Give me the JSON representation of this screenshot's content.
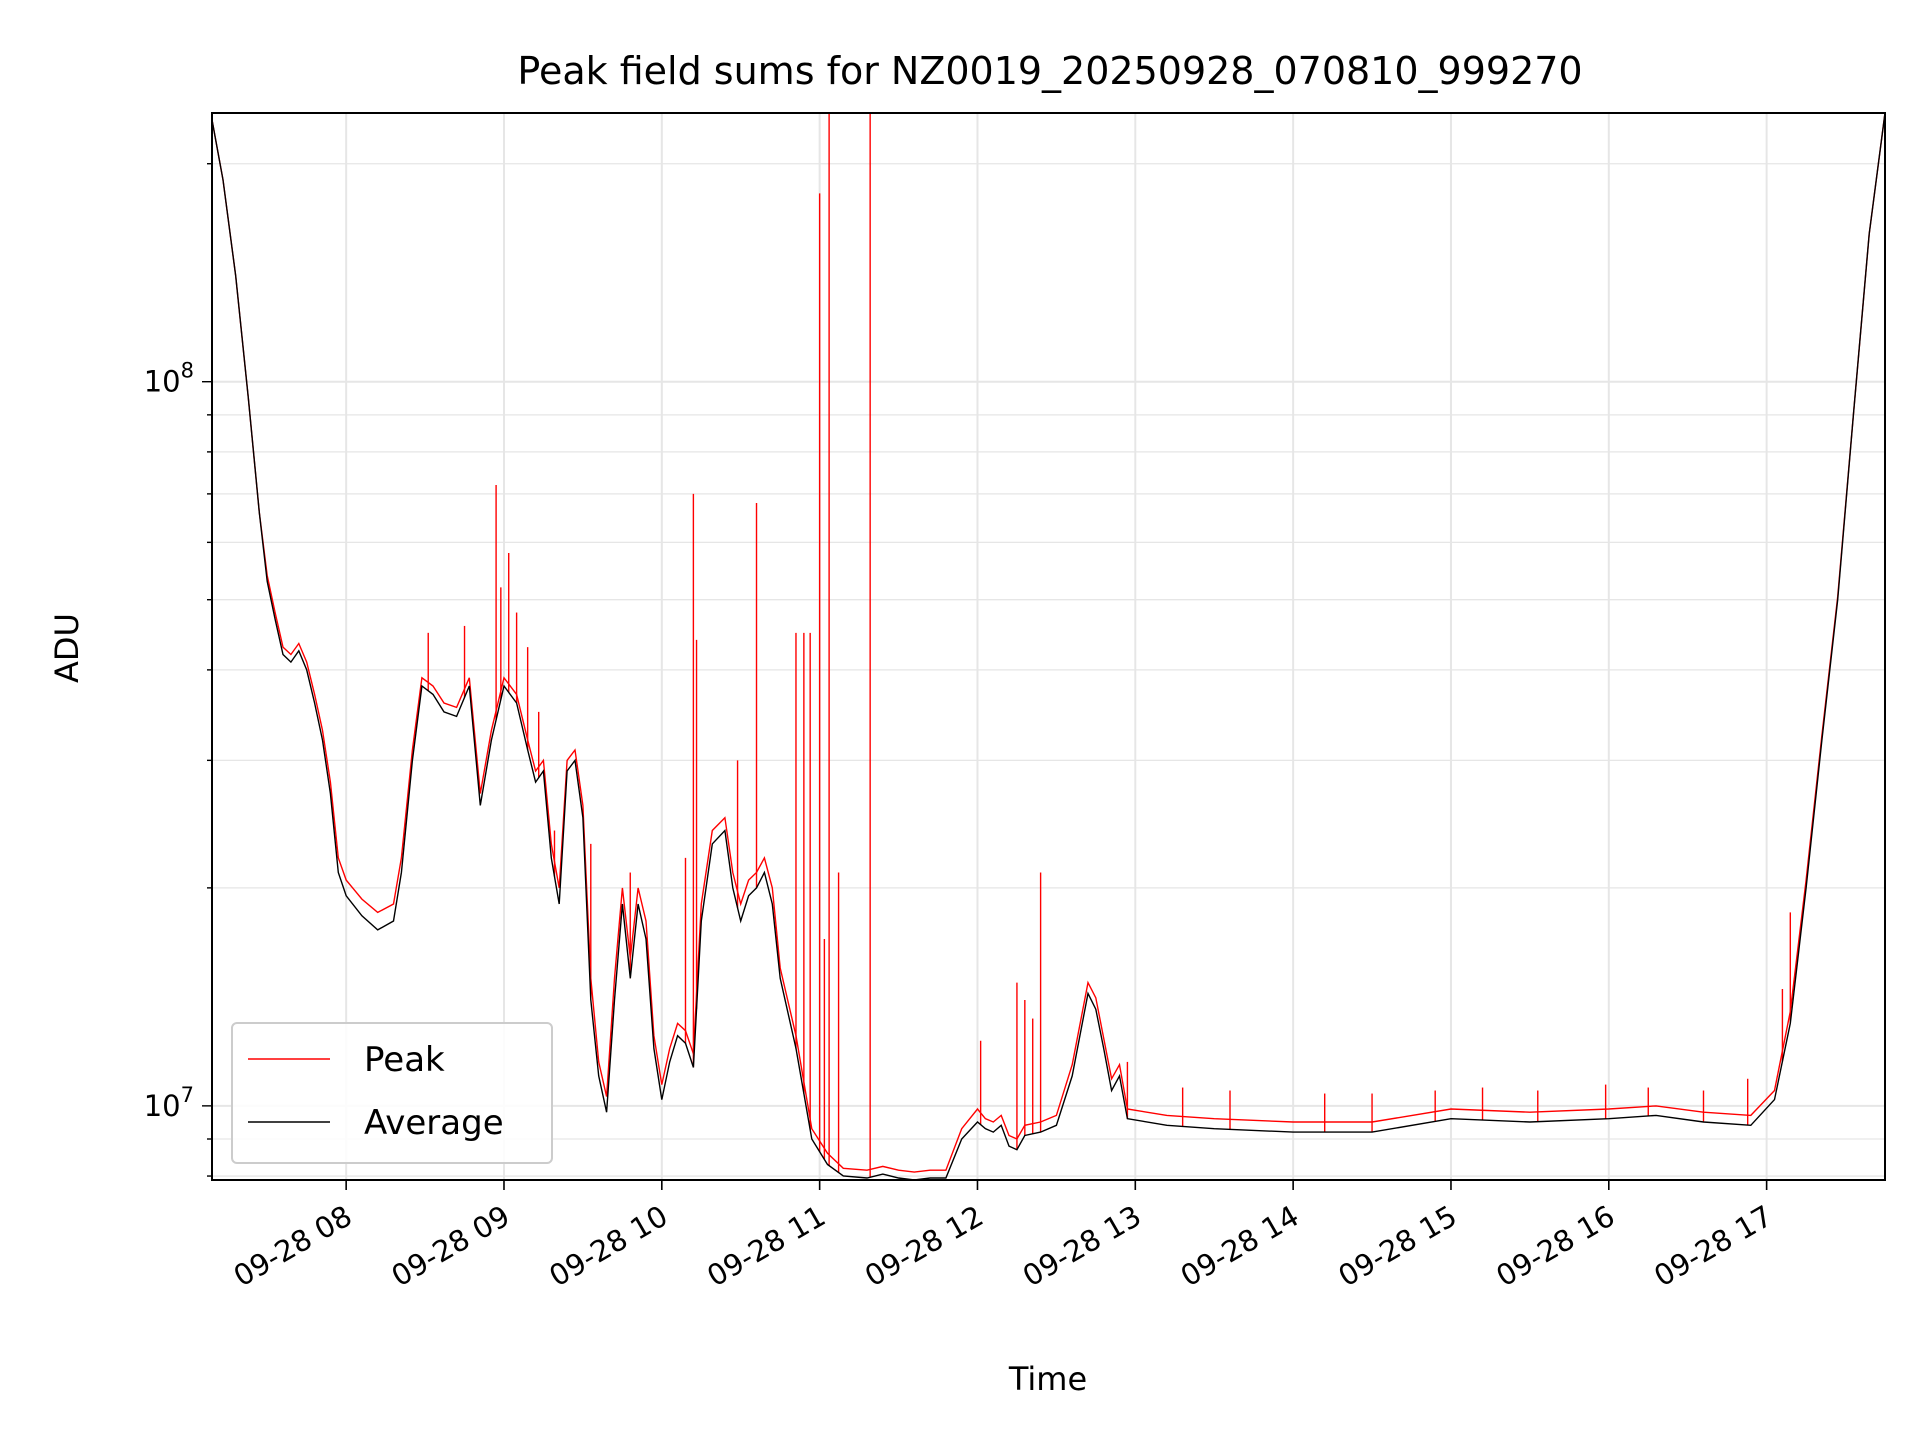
{
  "chart_data": {
    "type": "line",
    "title": "Peak field sums for NZ0019_20250928_070810_999270",
    "xlabel": "Time",
    "ylabel": "ADU",
    "yscale": "log",
    "ylim": [
      7900000,
      235000000
    ],
    "xlim": [
      7.15,
      17.75
    ],
    "x_unit": "hours on 2025-09-28",
    "grid": true,
    "legend_position": "lower-left",
    "x_ticks": [
      {
        "value": 8,
        "label": "09-28 08"
      },
      {
        "value": 9,
        "label": "09-28 09"
      },
      {
        "value": 10,
        "label": "09-28 10"
      },
      {
        "value": 11,
        "label": "09-28 11"
      },
      {
        "value": 12,
        "label": "09-28 12"
      },
      {
        "value": 13,
        "label": "09-28 13"
      },
      {
        "value": 14,
        "label": "09-28 14"
      },
      {
        "value": 15,
        "label": "09-28 15"
      },
      {
        "value": 16,
        "label": "09-28 16"
      },
      {
        "value": 17,
        "label": "09-28 17"
      }
    ],
    "y_ticks": [
      {
        "value": 10000000,
        "base": "10",
        "exp": "7"
      },
      {
        "value": 100000000,
        "base": "10",
        "exp": "8"
      }
    ],
    "series": [
      {
        "name": "Average",
        "color": "#000000",
        "points": [
          [
            7.15,
            230000000
          ],
          [
            7.22,
            190000000
          ],
          [
            7.3,
            140000000
          ],
          [
            7.38,
            95000000
          ],
          [
            7.45,
            66000000
          ],
          [
            7.5,
            53000000
          ],
          [
            7.55,
            47000000
          ],
          [
            7.6,
            42000000
          ],
          [
            7.65,
            41000000
          ],
          [
            7.7,
            42500000
          ],
          [
            7.75,
            40000000
          ],
          [
            7.8,
            36000000
          ],
          [
            7.85,
            32000000
          ],
          [
            7.9,
            27000000
          ],
          [
            7.95,
            21000000
          ],
          [
            8.0,
            19500000
          ],
          [
            8.1,
            18300000
          ],
          [
            8.2,
            17500000
          ],
          [
            8.3,
            18000000
          ],
          [
            8.35,
            21000000
          ],
          [
            8.42,
            30000000
          ],
          [
            8.48,
            38000000
          ],
          [
            8.55,
            37000000
          ],
          [
            8.62,
            35000000
          ],
          [
            8.7,
            34500000
          ],
          [
            8.78,
            38000000
          ],
          [
            8.85,
            26000000
          ],
          [
            8.92,
            32000000
          ],
          [
            9.0,
            38000000
          ],
          [
            9.08,
            36000000
          ],
          [
            9.15,
            31000000
          ],
          [
            9.2,
            28000000
          ],
          [
            9.25,
            29000000
          ],
          [
            9.3,
            22000000
          ],
          [
            9.35,
            19000000
          ],
          [
            9.4,
            29000000
          ],
          [
            9.45,
            30000000
          ],
          [
            9.5,
            25000000
          ],
          [
            9.55,
            14000000
          ],
          [
            9.6,
            11000000
          ],
          [
            9.65,
            9800000
          ],
          [
            9.7,
            14000000
          ],
          [
            9.75,
            19000000
          ],
          [
            9.8,
            15000000
          ],
          [
            9.85,
            19000000
          ],
          [
            9.9,
            17000000
          ],
          [
            9.95,
            12000000
          ],
          [
            10.0,
            10200000
          ],
          [
            10.05,
            11500000
          ],
          [
            10.1,
            12500000
          ],
          [
            10.15,
            12200000
          ],
          [
            10.2,
            11300000
          ],
          [
            10.25,
            18000000
          ],
          [
            10.32,
            23000000
          ],
          [
            10.4,
            24000000
          ],
          [
            10.45,
            20000000
          ],
          [
            10.5,
            18000000
          ],
          [
            10.55,
            19500000
          ],
          [
            10.6,
            20000000
          ],
          [
            10.65,
            21000000
          ],
          [
            10.7,
            19000000
          ],
          [
            10.75,
            15000000
          ],
          [
            10.85,
            12000000
          ],
          [
            10.95,
            9000000
          ],
          [
            11.05,
            8300000
          ],
          [
            11.15,
            8000000
          ],
          [
            11.3,
            7950000
          ],
          [
            11.4,
            8050000
          ],
          [
            11.5,
            7950000
          ],
          [
            11.6,
            7900000
          ],
          [
            11.7,
            7950000
          ],
          [
            11.8,
            7950000
          ],
          [
            11.9,
            9000000
          ],
          [
            12.0,
            9500000
          ],
          [
            12.05,
            9300000
          ],
          [
            12.1,
            9200000
          ],
          [
            12.15,
            9400000
          ],
          [
            12.2,
            8800000
          ],
          [
            12.25,
            8700000
          ],
          [
            12.3,
            9100000
          ],
          [
            12.4,
            9200000
          ],
          [
            12.5,
            9400000
          ],
          [
            12.6,
            11000000
          ],
          [
            12.7,
            14300000
          ],
          [
            12.75,
            13600000
          ],
          [
            12.8,
            12000000
          ],
          [
            12.85,
            10500000
          ],
          [
            12.9,
            11000000
          ],
          [
            12.95,
            9600000
          ],
          [
            13.2,
            9400000
          ],
          [
            13.5,
            9300000
          ],
          [
            14.0,
            9200000
          ],
          [
            14.5,
            9200000
          ],
          [
            15.0,
            9600000
          ],
          [
            15.5,
            9500000
          ],
          [
            16.0,
            9600000
          ],
          [
            16.3,
            9700000
          ],
          [
            16.6,
            9500000
          ],
          [
            16.9,
            9400000
          ],
          [
            17.05,
            10200000
          ],
          [
            17.15,
            13000000
          ],
          [
            17.25,
            20000000
          ],
          [
            17.35,
            32000000
          ],
          [
            17.45,
            50000000
          ],
          [
            17.55,
            90000000
          ],
          [
            17.65,
            160000000
          ],
          [
            17.75,
            235000000
          ]
        ]
      },
      {
        "name": "Peak",
        "color": "#ff0000",
        "points": [
          [
            7.15,
            230000000
          ],
          [
            7.22,
            190000000
          ],
          [
            7.3,
            140000000
          ],
          [
            7.38,
            95000000
          ],
          [
            7.45,
            66000000
          ],
          [
            7.5,
            54000000
          ],
          [
            7.55,
            48000000
          ],
          [
            7.6,
            43000000
          ],
          [
            7.65,
            42000000
          ],
          [
            7.7,
            43500000
          ],
          [
            7.75,
            41000000
          ],
          [
            7.8,
            37000000
          ],
          [
            7.85,
            33000000
          ],
          [
            7.9,
            28000000
          ],
          [
            7.95,
            22000000
          ],
          [
            8.0,
            20500000
          ],
          [
            8.1,
            19300000
          ],
          [
            8.2,
            18500000
          ],
          [
            8.3,
            19000000
          ],
          [
            8.35,
            22000000
          ],
          [
            8.42,
            31000000
          ],
          [
            8.48,
            39000000
          ],
          [
            8.55,
            38000000
          ],
          [
            8.62,
            36000000
          ],
          [
            8.7,
            35500000
          ],
          [
            8.78,
            39000000
          ],
          [
            8.85,
            27000000
          ],
          [
            8.92,
            33000000
          ],
          [
            9.0,
            39000000
          ],
          [
            9.08,
            37000000
          ],
          [
            9.15,
            32000000
          ],
          [
            9.2,
            29000000
          ],
          [
            9.25,
            30000000
          ],
          [
            9.3,
            23000000
          ],
          [
            9.35,
            20000000
          ],
          [
            9.4,
            30000000
          ],
          [
            9.45,
            31000000
          ],
          [
            9.5,
            26000000
          ],
          [
            9.55,
            15000000
          ],
          [
            9.6,
            11500000
          ],
          [
            9.65,
            10300000
          ],
          [
            9.7,
            15000000
          ],
          [
            9.75,
            20000000
          ],
          [
            9.8,
            16000000
          ],
          [
            9.85,
            20000000
          ],
          [
            9.9,
            18000000
          ],
          [
            9.95,
            12500000
          ],
          [
            10.0,
            10700000
          ],
          [
            10.05,
            12000000
          ],
          [
            10.1,
            13000000
          ],
          [
            10.15,
            12700000
          ],
          [
            10.2,
            11800000
          ],
          [
            10.25,
            19000000
          ],
          [
            10.32,
            24000000
          ],
          [
            10.4,
            25000000
          ],
          [
            10.45,
            21000000
          ],
          [
            10.5,
            19000000
          ],
          [
            10.55,
            20500000
          ],
          [
            10.6,
            21000000
          ],
          [
            10.65,
            22000000
          ],
          [
            10.7,
            20000000
          ],
          [
            10.75,
            15500000
          ],
          [
            10.85,
            12500000
          ],
          [
            10.95,
            9300000
          ],
          [
            11.05,
            8600000
          ],
          [
            11.15,
            8200000
          ],
          [
            11.3,
            8150000
          ],
          [
            11.4,
            8250000
          ],
          [
            11.5,
            8150000
          ],
          [
            11.6,
            8100000
          ],
          [
            11.7,
            8150000
          ],
          [
            11.8,
            8150000
          ],
          [
            11.9,
            9300000
          ],
          [
            12.0,
            9900000
          ],
          [
            12.05,
            9600000
          ],
          [
            12.1,
            9500000
          ],
          [
            12.15,
            9700000
          ],
          [
            12.2,
            9100000
          ],
          [
            12.25,
            9000000
          ],
          [
            12.3,
            9400000
          ],
          [
            12.4,
            9500000
          ],
          [
            12.5,
            9700000
          ],
          [
            12.6,
            11400000
          ],
          [
            12.7,
            14800000
          ],
          [
            12.75,
            14100000
          ],
          [
            12.8,
            12400000
          ],
          [
            12.85,
            10900000
          ],
          [
            12.9,
            11400000
          ],
          [
            12.95,
            9900000
          ],
          [
            13.2,
            9700000
          ],
          [
            13.5,
            9600000
          ],
          [
            14.0,
            9500000
          ],
          [
            14.5,
            9500000
          ],
          [
            15.0,
            9900000
          ],
          [
            15.5,
            9800000
          ],
          [
            16.0,
            9900000
          ],
          [
            16.3,
            10000000
          ],
          [
            16.6,
            9800000
          ],
          [
            16.9,
            9700000
          ],
          [
            17.05,
            10500000
          ],
          [
            17.15,
            13500000
          ],
          [
            17.25,
            20500000
          ],
          [
            17.35,
            32500000
          ],
          [
            17.45,
            50500000
          ],
          [
            17.55,
            90000000
          ],
          [
            17.65,
            160000000
          ],
          [
            17.75,
            235000000
          ]
        ],
        "spikes": [
          [
            8.52,
            45000000
          ],
          [
            8.75,
            46000000
          ],
          [
            8.95,
            72000000
          ],
          [
            8.98,
            52000000
          ],
          [
            9.03,
            58000000
          ],
          [
            9.08,
            48000000
          ],
          [
            9.15,
            43000000
          ],
          [
            9.22,
            35000000
          ],
          [
            9.32,
            24000000
          ],
          [
            9.55,
            23000000
          ],
          [
            9.8,
            21000000
          ],
          [
            10.15,
            22000000
          ],
          [
            10.2,
            70000000
          ],
          [
            10.22,
            44000000
          ],
          [
            10.48,
            30000000
          ],
          [
            10.6,
            68000000
          ],
          [
            10.85,
            45000000
          ],
          [
            10.9,
            45000000
          ],
          [
            10.94,
            45000000
          ],
          [
            11.0,
            182000000
          ],
          [
            11.03,
            17000000
          ],
          [
            11.06,
            235000000
          ],
          [
            11.12,
            21000000
          ],
          [
            11.32,
            235000000
          ],
          [
            12.02,
            12300000
          ],
          [
            12.25,
            14800000
          ],
          [
            12.3,
            14000000
          ],
          [
            12.35,
            13200000
          ],
          [
            12.4,
            21000000
          ],
          [
            12.95,
            11500000
          ],
          [
            13.3,
            10600000
          ],
          [
            13.6,
            10500000
          ],
          [
            14.2,
            10400000
          ],
          [
            14.5,
            10400000
          ],
          [
            14.9,
            10500000
          ],
          [
            15.2,
            10600000
          ],
          [
            15.55,
            10500000
          ],
          [
            15.98,
            10700000
          ],
          [
            16.25,
            10600000
          ],
          [
            16.6,
            10500000
          ],
          [
            16.88,
            10900000
          ],
          [
            17.1,
            14500000
          ],
          [
            17.15,
            18500000
          ]
        ]
      }
    ]
  }
}
